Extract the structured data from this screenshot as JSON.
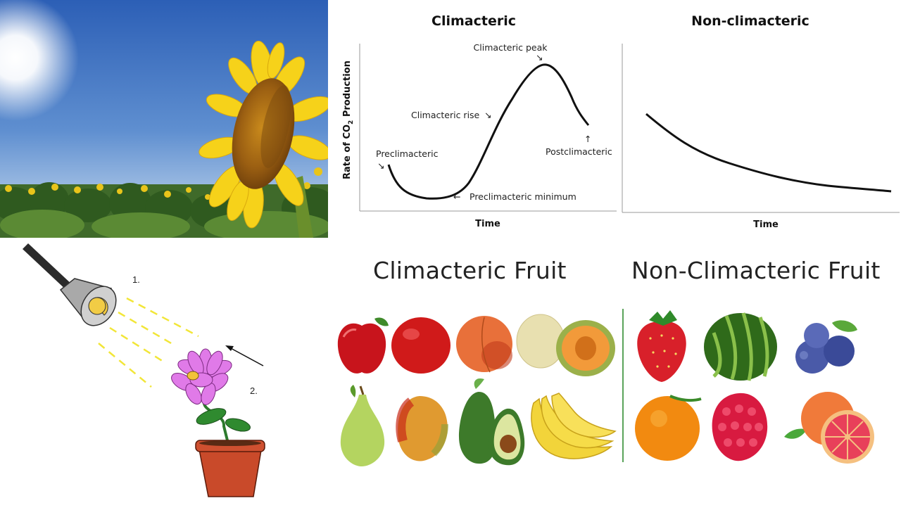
{
  "curves": {
    "left_title": "Climacteric",
    "right_title": "Non-climacteric",
    "ylabel_prefix": "Rate of CO",
    "ylabel_sub": "2",
    "ylabel_suffix": " Production",
    "xlabel_left": "Time",
    "xlabel_right": "Time",
    "annotations": {
      "preclimacteric": "Preclimacteric",
      "climacteric_rise": "Climacteric rise",
      "climacteric_peak": "Climacteric peak",
      "postclimacteric": "Postclimacteric",
      "preclimacteric_minimum": "Preclimacteric minimum"
    }
  },
  "fruits": {
    "left_heading": "Climacteric Fruit",
    "right_heading": "Non-Climacteric Fruit",
    "climacteric_items": [
      "apple-icon",
      "nectarine-icon",
      "peach-icon",
      "cantaloupe-icon",
      "pear-icon",
      "mango-icon",
      "avocado-icon",
      "banana-icon"
    ],
    "non_climacteric_items": [
      "strawberry-icon",
      "watermelon-icon",
      "blueberry-icon",
      "orange-icon",
      "raspberry-icon",
      "grapefruit-icon"
    ]
  },
  "lamp_diagram": {
    "step1": "1.",
    "step2": "2."
  },
  "colors": {
    "sky_top": "#2f62b8",
    "sky_bottom": "#c9dcef",
    "petal": "#f6d21a",
    "divider": "#5aa35a",
    "light_ray": "#f2e638",
    "flower": "#e07ae8",
    "pot": "#c94a2a"
  }
}
